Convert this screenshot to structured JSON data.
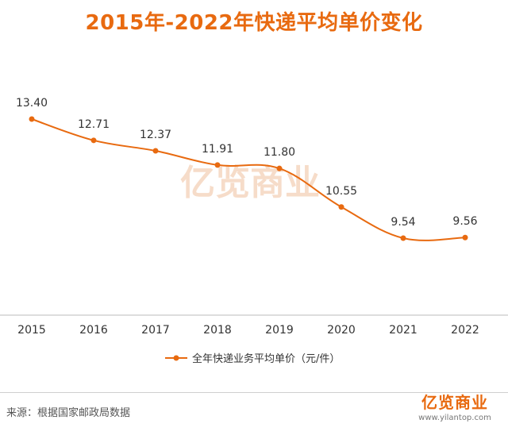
{
  "title": "2015年-2022年快递平均单价变化",
  "watermark": "亿览商业",
  "source": "来源：根据国家邮政局数据",
  "brand": {
    "logo": "亿览商业",
    "url": "www.yilantop.com"
  },
  "colors": {
    "accent": "#e86a10",
    "watermark": "#f6d9c4",
    "axis": "#bbbbbb",
    "text": "#333333"
  },
  "chart_data": {
    "type": "line",
    "title": "2015年-2022年快递平均单价变化",
    "categories": [
      "2015",
      "2016",
      "2017",
      "2018",
      "2019",
      "2020",
      "2021",
      "2022"
    ],
    "series": [
      {
        "name": "全年快递业务平均单价（元/件）",
        "values": [
          13.4,
          12.71,
          12.37,
          11.91,
          11.8,
          10.55,
          9.54,
          9.56
        ]
      }
    ],
    "value_labels": [
      "13.40",
      "12.71",
      "12.37",
      "11.91",
      "11.80",
      "10.55",
      "9.54",
      "9.56"
    ],
    "smooth": true,
    "grid": false,
    "legend": "bottom-center"
  }
}
